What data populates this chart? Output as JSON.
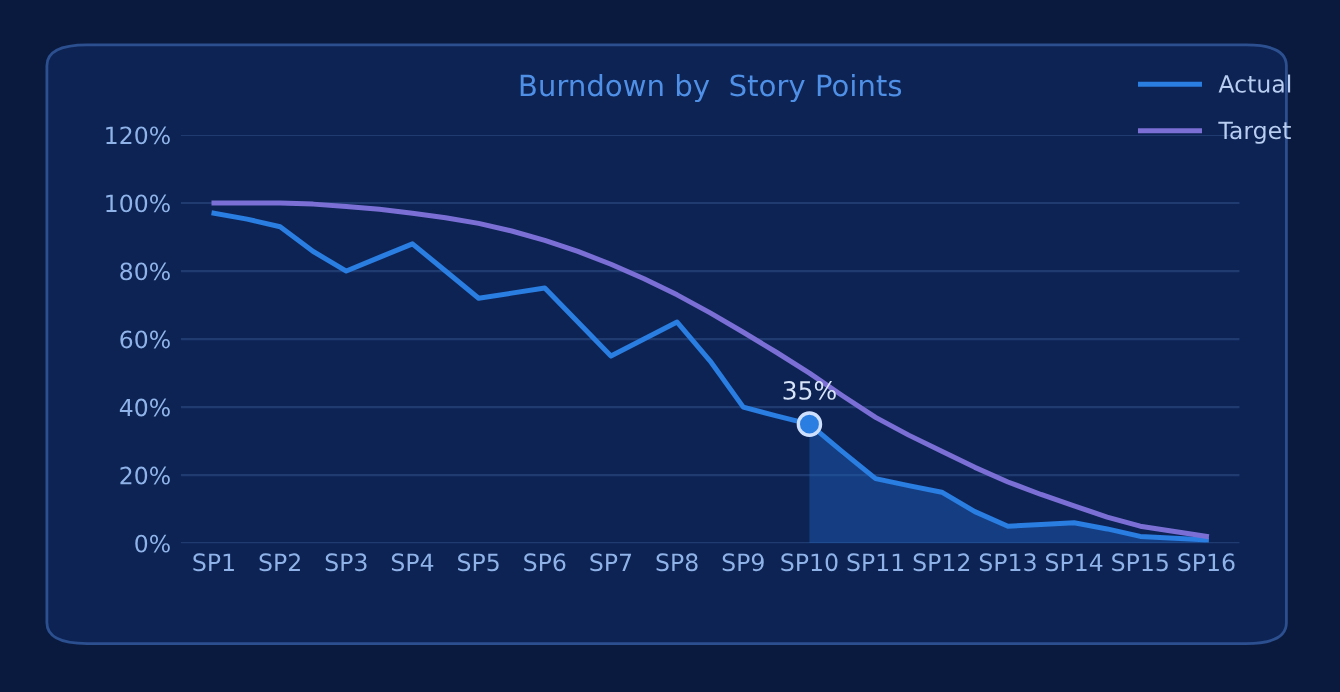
{
  "chart_data": {
    "type": "line",
    "title": "Burndown by  Story Points",
    "categories": [
      "SP1",
      "SP2",
      "SP3",
      "SP4",
      "SP5",
      "SP6",
      "SP7",
      "SP8",
      "SP9",
      "SP10",
      "SP11",
      "SP12",
      "SP13",
      "SP14",
      "SP15",
      "SP16"
    ],
    "series": [
      {
        "type": "area",
        "color": "#1f5fb8",
        "values": [
          null,
          null,
          null,
          null,
          null,
          null,
          null,
          null,
          null,
          35,
          19,
          15,
          5,
          6,
          2,
          1
        ]
      },
      {
        "name": "Actual",
        "color": "#2a7de1",
        "values": [
          97,
          93,
          80,
          88,
          72,
          75,
          55,
          65,
          40,
          35,
          19,
          15,
          5,
          6,
          2,
          1
        ]
      },
      {
        "name": "Target",
        "color": "#7b6fd6",
        "values": [
          100,
          100,
          99,
          97,
          94,
          89,
          82,
          73,
          62,
          50,
          37,
          27,
          18,
          11,
          5,
          2
        ]
      }
    ],
    "annotations": [
      {
        "text": "35%",
        "x": "SP10",
        "y": 35
      }
    ],
    "ylim": [
      0,
      120
    ],
    "yticks": [
      {
        "value": 0,
        "label": "0%"
      },
      {
        "value": 20,
        "label": "20%"
      },
      {
        "value": 40,
        "label": "40%"
      },
      {
        "value": 60,
        "label": "60%"
      },
      {
        "value": 80,
        "label": "80%"
      },
      {
        "value": 100,
        "label": "100%"
      },
      {
        "value": 120,
        "label": "120%"
      }
    ],
    "grid": "y",
    "legend": "top right",
    "marker": "none",
    "line_style": "solid"
  }
}
